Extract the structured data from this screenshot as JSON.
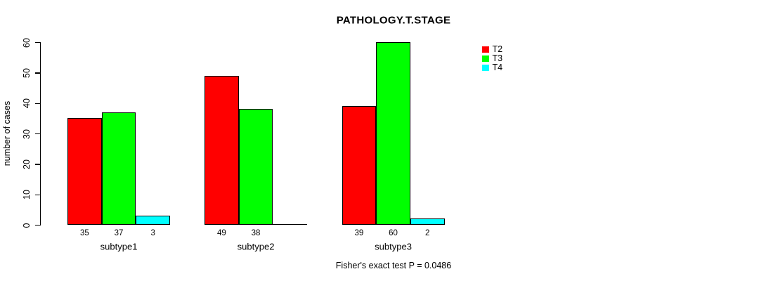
{
  "title": "PATHOLOGY.T.STAGE",
  "caption": "Fisher's exact test P = 0.0486",
  "chart_data": {
    "type": "bar",
    "title": "PATHOLOGY.T.STAGE",
    "xlabel": "",
    "ylabel": "number of cases",
    "ylim": [
      0,
      60
    ],
    "yticks": [
      0,
      10,
      20,
      30,
      40,
      50,
      60
    ],
    "grid": false,
    "legend_position": "top-right",
    "categories": [
      "subtype1",
      "subtype2",
      "subtype3"
    ],
    "series": [
      {
        "name": "T2",
        "color": "#ff0000",
        "values": [
          35,
          49,
          39
        ]
      },
      {
        "name": "T3",
        "color": "#00ff00",
        "values": [
          37,
          38,
          60
        ]
      },
      {
        "name": "T4",
        "color": "#00ffff",
        "values": [
          3,
          0,
          2
        ]
      }
    ],
    "bar_value_labels": [
      [
        "35",
        "49",
        "39"
      ],
      [
        "37",
        "38",
        "60"
      ],
      [
        "3",
        "",
        "2"
      ]
    ],
    "annotation": "Fisher's exact test P = 0.0486"
  }
}
